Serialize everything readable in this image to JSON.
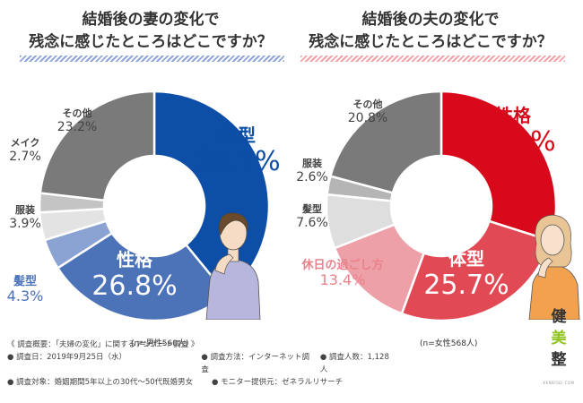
{
  "left_title_line1": "結婚後の妻の変化で",
  "left_title_line2": "残念に感じたところはどこですか？",
  "right_title_line1": "結婚後の夫の変化で",
  "right_title_line2": "残念に感じたところはどこですか？",
  "left_note": "(n=男性560人)",
  "right_note": "(n=女性568人)",
  "footer": {
    "line1": "《 調査概要：「夫婦の変化」に関するアンケート調査 》",
    "line2a": "● 調査日：2019年9月25日（水）",
    "line2b": "● 調査方法：インターネット調査",
    "line2c": "● 調査人数：1,128人",
    "line3a": "● 調査対象：婚姻期間5年以上の30代〜50代既婚男女",
    "line3b": "● モニター提供元：ゼネラルリサーチ"
  },
  "logo": {
    "c1": "健",
    "c2": "美",
    "c3": "整",
    "sub": "KENBISEI.COM"
  },
  "chart_data": [
    {
      "type": "pie",
      "title": "結婚後の妻の変化で 残念に感じたところはどこですか？",
      "donut": true,
      "slices": [
        {
          "label": "体型",
          "value": 39.1,
          "display": "39.1%",
          "color": "#0d4ea6"
        },
        {
          "label": "性格",
          "value": 26.8,
          "display": "26.8%",
          "color": "#4c72b8"
        },
        {
          "label": "髪型",
          "value": 4.3,
          "display": "4.3%",
          "color": "#8aa3d2"
        },
        {
          "label": "服装",
          "value": 3.9,
          "display": "3.9%",
          "color": "#e3e3e3"
        },
        {
          "label": "メイク",
          "value": 2.7,
          "display": "2.7%",
          "color": "#c4c4c4"
        },
        {
          "label": "その他",
          "value": 23.2,
          "display": "23.2%",
          "color": "#7a7a7a"
        }
      ]
    },
    {
      "type": "pie",
      "title": "結婚後の夫の変化で 残念に感じたところはどこですか？",
      "donut": true,
      "slices": [
        {
          "label": "性格",
          "value": 29.9,
          "display": "29.9%",
          "color": "#d8091b"
        },
        {
          "label": "体型",
          "value": 25.7,
          "display": "25.7%",
          "color": "#e14a55"
        },
        {
          "label": "休日の過ごし方",
          "value": 13.4,
          "display": "13.4%",
          "color": "#eda0a7"
        },
        {
          "label": "髪型",
          "value": 7.6,
          "display": "7.6%",
          "color": "#dedede"
        },
        {
          "label": "服装",
          "value": 2.6,
          "display": "2.6%",
          "color": "#b5b5b5"
        },
        {
          "label": "その他",
          "value": 20.8,
          "display": "20.8%",
          "color": "#7a7a7a"
        }
      ]
    }
  ]
}
